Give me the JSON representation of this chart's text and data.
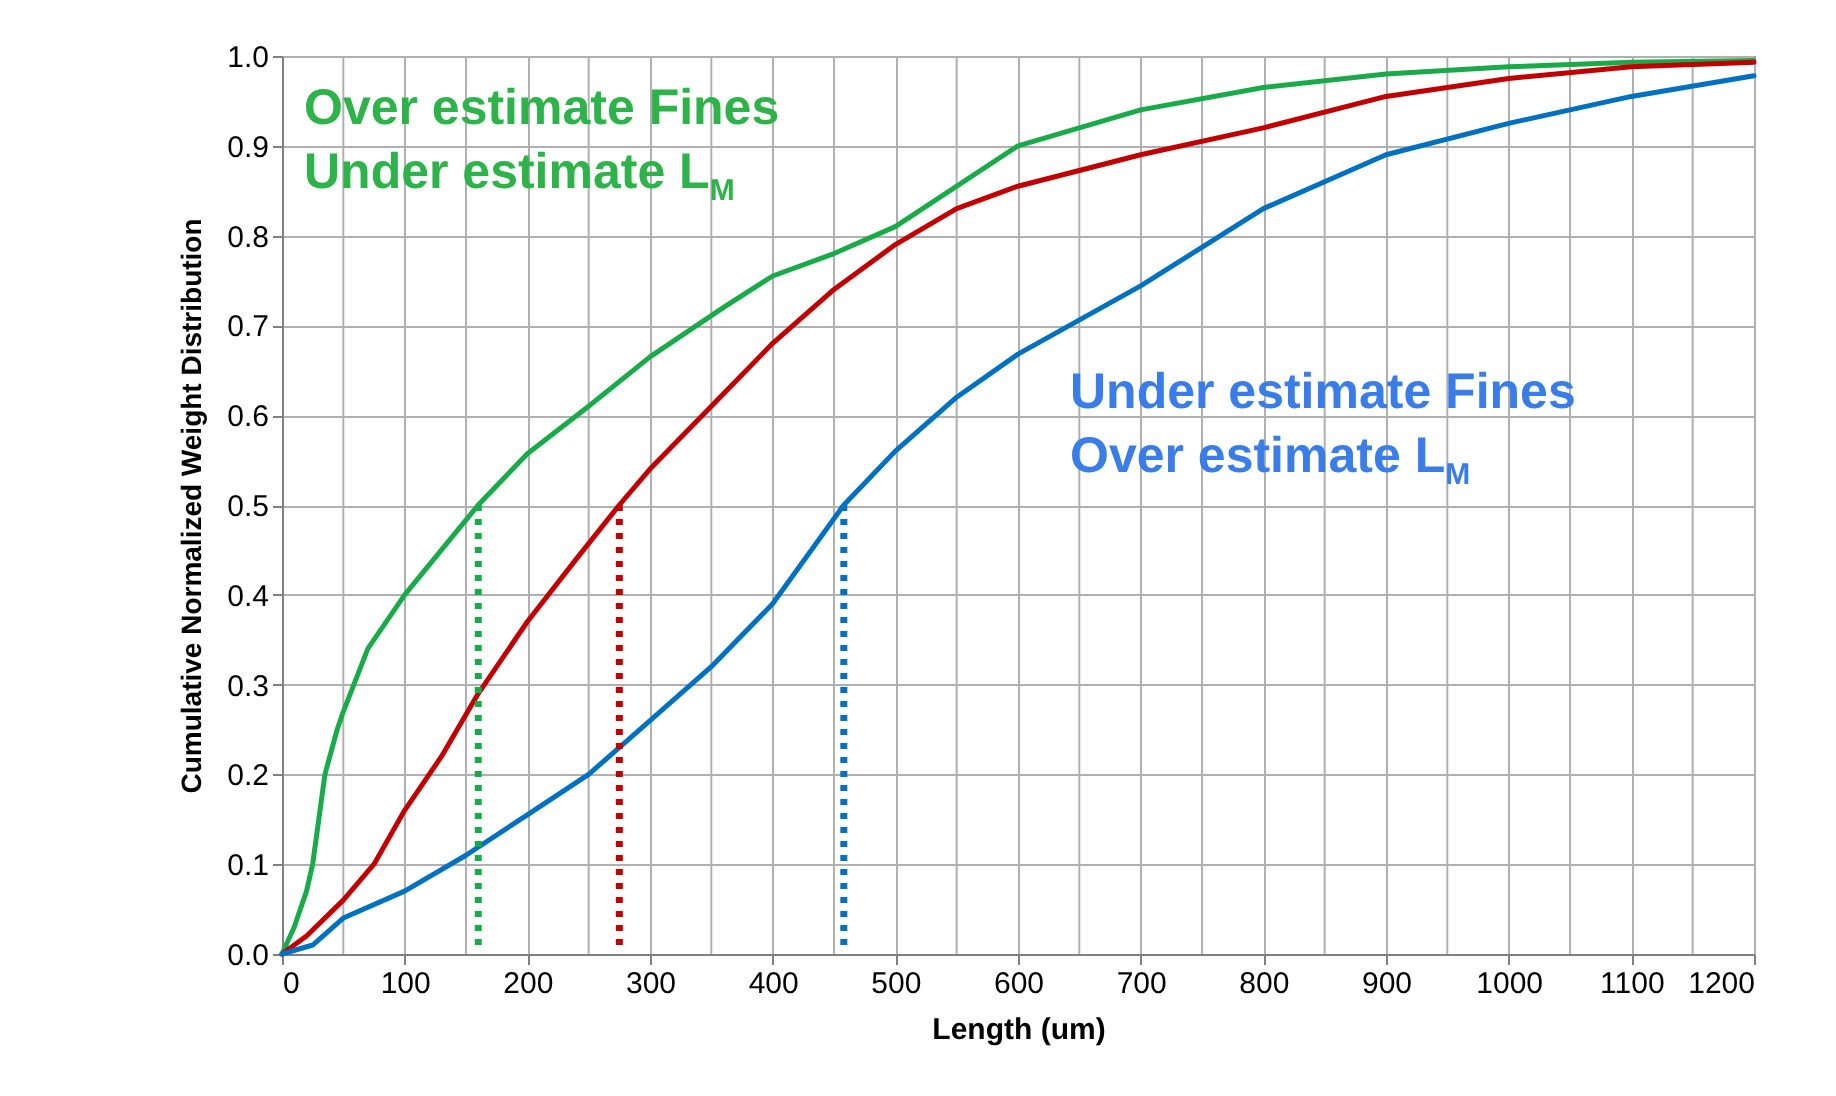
{
  "chart_data": {
    "type": "line",
    "xlabel": "Length (um)",
    "ylabel": "Cumulative Normalized Weight Distribution",
    "xlim": [
      0,
      1200
    ],
    "ylim": [
      0,
      1.0
    ],
    "xticks": [
      0,
      {
        "value": 50,
        "label": null
      },
      100,
      {
        "value": 150,
        "label": null
      },
      200,
      {
        "value": 250,
        "label": null
      },
      300,
      {
        "value": 350,
        "label": null
      },
      400,
      {
        "value": 450,
        "label": null
      },
      500,
      {
        "value": 550,
        "label": null
      },
      600,
      {
        "value": 650,
        "label": null
      },
      700,
      {
        "value": 750,
        "label": null
      },
      800,
      {
        "value": 850,
        "label": null
      },
      900,
      {
        "value": 950,
        "label": null
      },
      1000,
      {
        "value": 1050,
        "label": null
      },
      1100,
      {
        "value": 1150,
        "label": null
      },
      1200
    ],
    "yticks": [
      {
        "value": 0,
        "label": "0.0"
      },
      0.1,
      0.2,
      0.3,
      0.4,
      0.5,
      0.6,
      0.7,
      0.8,
      0.9,
      {
        "value": 1,
        "label": "1.0"
      }
    ],
    "grid": true,
    "marker": "none",
    "line_style": "solid",
    "annotations": [
      "Over estimate Fines\nUnder estimate L$_{M}$",
      "Under estimate Fines\nOver estimate L$_{M}$"
    ],
    "series": [
      {
        "color": "#1aaa4a",
        "x": [
          0,
          10,
          20,
          25,
          30,
          35,
          45,
          50,
          70,
          100,
          130,
          160,
          200,
          250,
          300,
          360,
          400,
          450,
          500,
          600,
          700,
          800,
          900,
          1000,
          1100,
          1200
        ],
        "values": [
          0,
          0.03,
          0.07,
          0.1,
          0.15,
          0.2,
          0.25,
          0.27,
          0.34,
          0.4,
          0.45,
          0.5,
          0.557,
          0.61,
          0.665,
          0.72,
          0.755,
          0.78,
          0.81,
          0.9,
          0.94,
          0.965,
          0.98,
          0.988,
          0.993,
          0.995
        ]
      },
      {
        "color": "#c00000",
        "x": [
          0,
          20,
          50,
          75,
          100,
          130,
          160,
          200,
          240,
          275,
          300,
          350,
          400,
          450,
          500,
          550,
          600,
          700,
          800,
          900,
          1000,
          1100,
          1200
        ],
        "values": [
          0,
          0.02,
          0.06,
          0.1,
          0.16,
          0.22,
          0.29,
          0.37,
          0.44,
          0.5,
          0.54,
          0.61,
          0.68,
          0.74,
          0.79,
          0.83,
          0.855,
          0.89,
          0.92,
          0.955,
          0.975,
          0.988,
          0.993
        ]
      },
      {
        "color": "#0070c0",
        "x": [
          0,
          25,
          50,
          100,
          150,
          200,
          250,
          300,
          350,
          400,
          458,
          500,
          550,
          600,
          700,
          800,
          900,
          1000,
          1100,
          1200
        ],
        "values": [
          0,
          0.01,
          0.04,
          0.07,
          0.11,
          0.155,
          0.2,
          0.26,
          0.32,
          0.39,
          0.5,
          0.56,
          0.62,
          0.668,
          0.744,
          0.83,
          0.89,
          0.925,
          0.955,
          0.978
        ]
      },
      {
        "color": "#1aaa4a",
        "line_style": "dotted",
        "x": [
          160,
          160
        ],
        "values": [
          0.5,
          0.01
        ]
      },
      {
        "color": "#c00000",
        "line_style": "dotted",
        "x": [
          275,
          275
        ],
        "values": [
          0.5,
          0.01
        ]
      },
      {
        "color": "#0070c0",
        "line_style": "dotted",
        "x": [
          458,
          458
        ],
        "values": [
          0.5,
          0.01
        ]
      }
    ]
  }
}
